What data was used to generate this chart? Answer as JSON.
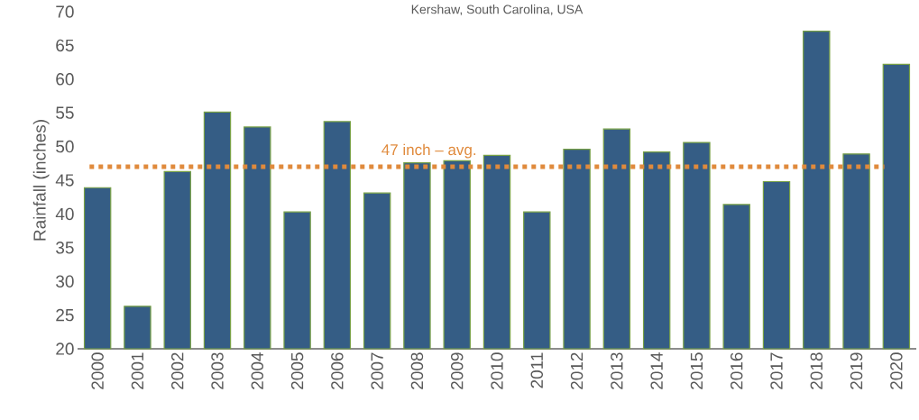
{
  "chart_data": {
    "type": "bar",
    "title": "Kershaw, South Carolina, USA",
    "ylabel": "Rainfall (inches)",
    "categories": [
      "2000",
      "2001",
      "2002",
      "2003",
      "2004",
      "2005",
      "2006",
      "2007",
      "2008",
      "2009",
      "2010",
      "2011",
      "2012",
      "2013",
      "2014",
      "2015",
      "2016",
      "2017",
      "2018",
      "2019",
      "2020"
    ],
    "values": [
      43.9,
      26.3,
      46.3,
      55.1,
      52.9,
      40.3,
      53.7,
      43.1,
      47.6,
      47.9,
      48.7,
      40.3,
      49.6,
      52.6,
      49.2,
      50.6,
      41.4,
      44.8,
      67.1,
      48.9,
      62.2
    ],
    "color": "#355d85",
    "ylim": [
      20,
      70
    ],
    "yticks": [
      20,
      25,
      30,
      35,
      40,
      45,
      50,
      55,
      60,
      65,
      70
    ],
    "ref_lines": [
      {
        "axis": "y",
        "value": 47,
        "label": "47 inch – avg.",
        "color": "#e08a3c",
        "line_style": "dotted"
      }
    ],
    "grid": false
  }
}
